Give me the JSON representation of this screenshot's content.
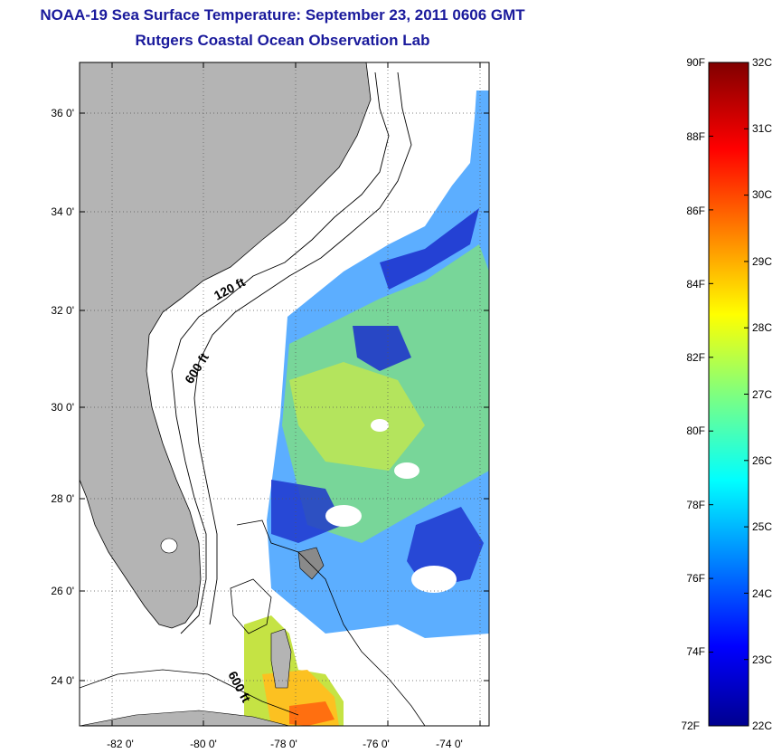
{
  "title": {
    "line1": "NOAA-19 Sea Surface Temperature:  September 23, 2011 0606 GMT",
    "line2": "Rutgers Coastal Ocean Observation Lab"
  },
  "map": {
    "lat_ticks": [
      "36 0'",
      "34 0'",
      "32 0'",
      "30 0'",
      "28 0'",
      "26 0'",
      "24 0'"
    ],
    "lon_ticks": [
      "-82 0'",
      "-80 0'",
      "-78 0'",
      "-76 0'",
      "-74 0'"
    ],
    "depth_labels": [
      "120 ft",
      "600 ft",
      "600 ft"
    ],
    "colors": {
      "land": "#b4b4b4",
      "ocean": "#ffffff"
    }
  },
  "colorbar": {
    "f_labels": [
      "90F",
      "88F",
      "86F",
      "84F",
      "82F",
      "80F",
      "78F",
      "76F",
      "74F",
      "72F"
    ],
    "c_labels": [
      "32C",
      "31C",
      "30C",
      "29C",
      "28C",
      "27C",
      "26C",
      "25C",
      "24C",
      "23C",
      "22C"
    ],
    "colormap": "jet",
    "range_c": [
      22,
      32
    ]
  }
}
